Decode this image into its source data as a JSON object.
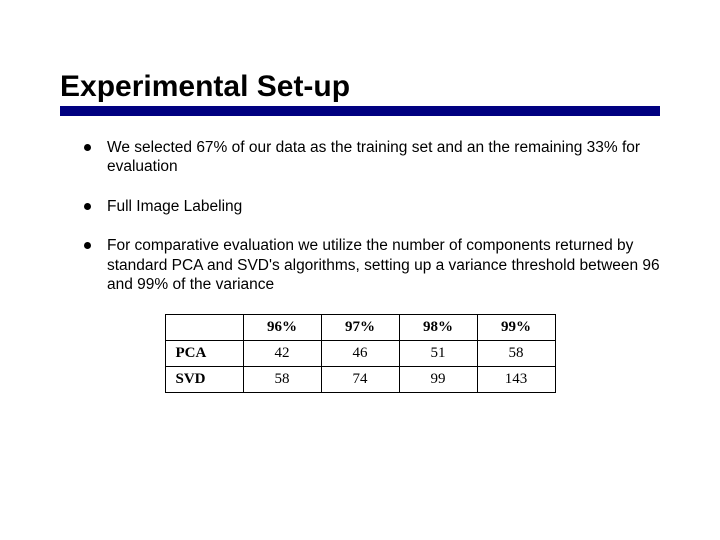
{
  "title": "Experimental Set-up",
  "accent_color": "#000080",
  "text_color": "#000000",
  "background_color": "#ffffff",
  "bullets": [
    "We selected 67% of our data as the training set and an the remaining 33% for evaluation",
    "Full Image Labeling",
    "For comparative evaluation we utilize the number of components returned by standard PCA and SVD's algorithms, setting up a variance threshold between 96 and 99% of the variance"
  ],
  "table": {
    "type": "table",
    "columns": [
      "96%",
      "97%",
      "98%",
      "99%"
    ],
    "rows": [
      {
        "label": "PCA",
        "values": [
          42,
          46,
          51,
          58
        ]
      },
      {
        "label": "SVD",
        "values": [
          58,
          74,
          99,
          143
        ]
      }
    ],
    "border_color": "#000000",
    "cell_fontsize": 15,
    "header_fontweight": "bold"
  }
}
